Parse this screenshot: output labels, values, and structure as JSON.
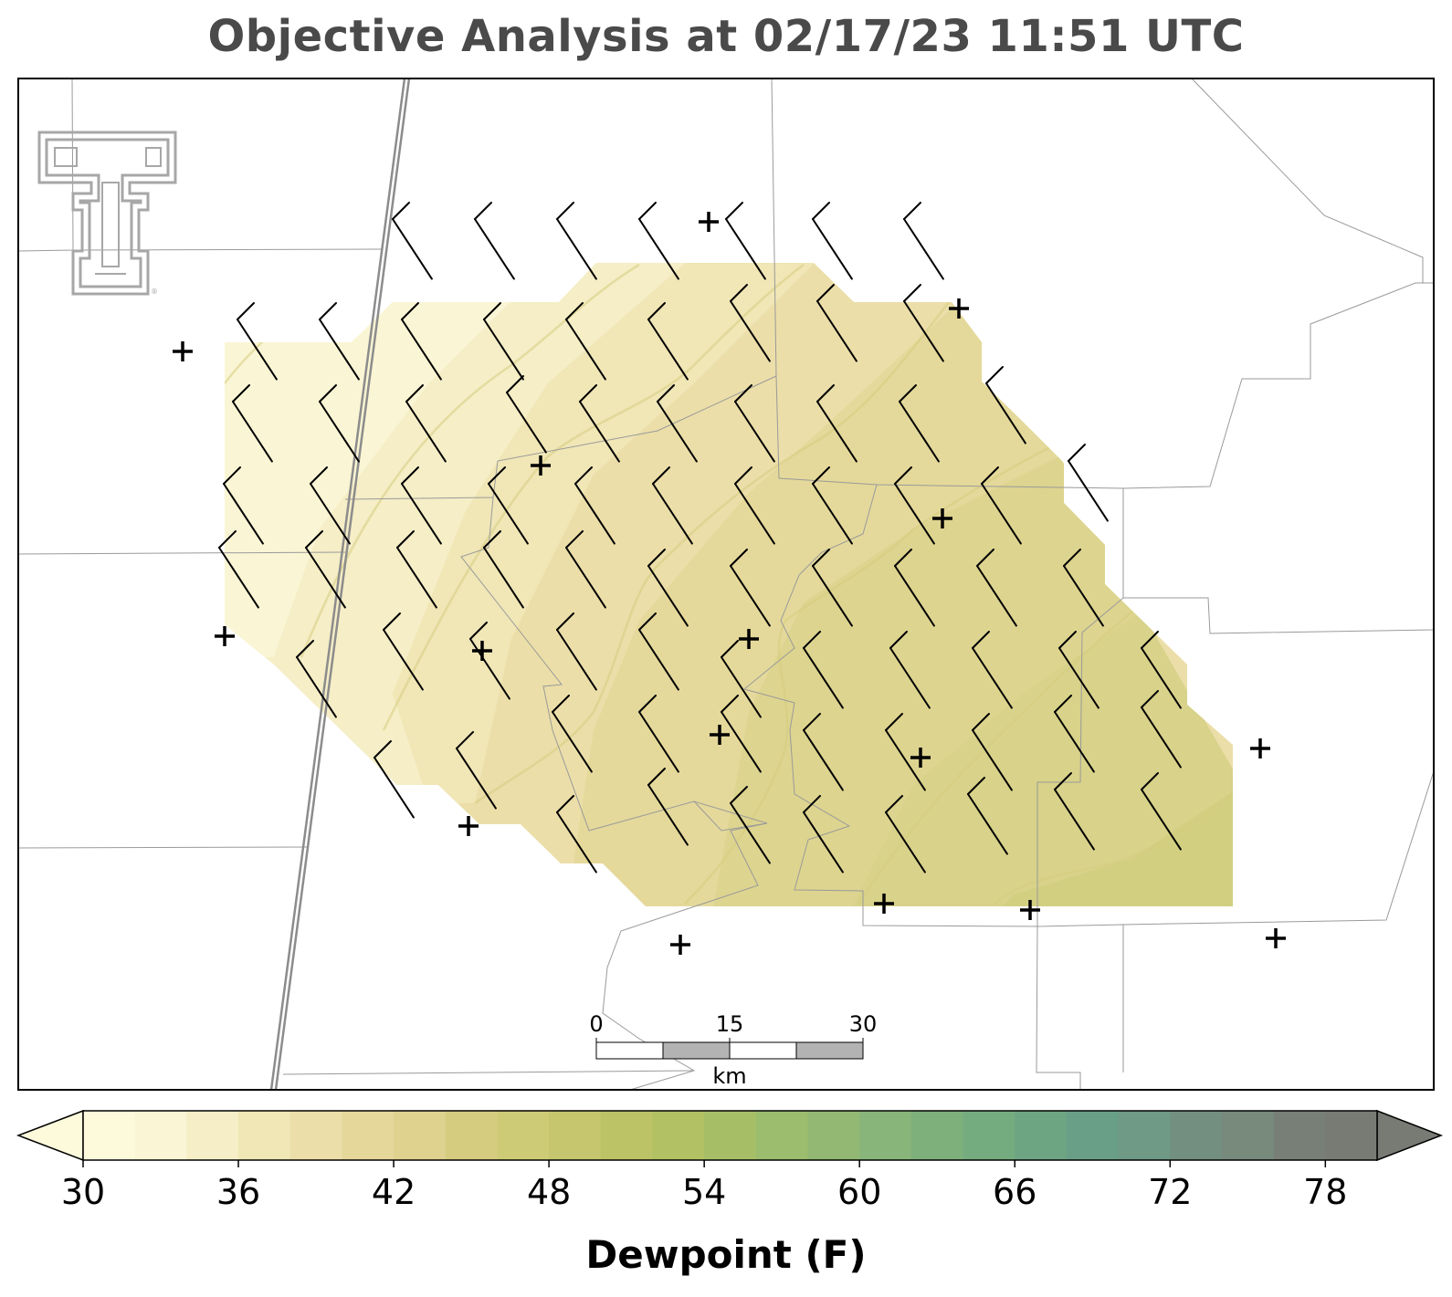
{
  "title": "Objective Analysis at 02/17/23 11:51 UTC",
  "colorbar": {
    "label": "Dewpoint (F)",
    "ticks": [
      "30",
      "36",
      "42",
      "48",
      "54",
      "60",
      "66",
      "72",
      "78"
    ],
    "min": 30,
    "max": 80,
    "step": 2,
    "colors": [
      "#fdfadc",
      "#faf5d4",
      "#f5eec6",
      "#f0e6b6",
      "#ebdea8",
      "#e5d79a",
      "#dfd28f",
      "#d6cc80",
      "#cecb76",
      "#c5c66e",
      "#bcc266",
      "#b1c163",
      "#a6bf67",
      "#9bbd6d",
      "#92b873",
      "#88b579",
      "#7eb07c",
      "#75ac7f",
      "#6da583",
      "#699f86",
      "#6e9a86",
      "#738f80",
      "#778a7c",
      "#787f76",
      "#787b74"
    ],
    "extend": "both"
  },
  "scale_bar": {
    "ticks": [
      "0",
      "15",
      "30"
    ],
    "unit": "km"
  },
  "logo": {
    "name": "texas-tech-double-t-logo",
    "color": "#a7a7a7"
  },
  "field_colors": {
    "lightest": "#faf5d4",
    "light": "#f5eec6",
    "mid": "#ebdea8",
    "midDark": "#e0d594",
    "dark": "#d8d28b",
    "darkest": "#d1cf82",
    "contour": "#d6cc80"
  }
}
